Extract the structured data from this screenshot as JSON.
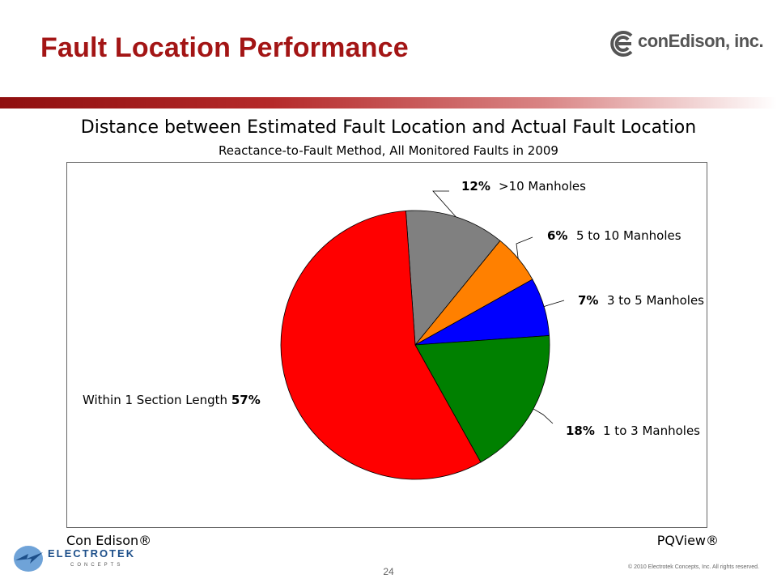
{
  "slide": {
    "title": "Fault Location Performance",
    "page_number": "24",
    "copyright": "© 2010 Electrotek Concepts, Inc. All rights reserved."
  },
  "logos": {
    "conedison": "conEdison, inc.",
    "electrotek_word": "ELECTROTEK",
    "electrotek_sub": "CONCEPTS"
  },
  "footer": {
    "left": "Con Edison®",
    "right": "PQView®"
  },
  "colors": {
    "title": "#a31515",
    "band_start": "#8f0f0f"
  },
  "chart_data": {
    "type": "pie",
    "title": "Distance between Estimated Fault Location and Actual Fault Location",
    "subtitle": "Reactance-to-Fault Method, All Monitored Faults in 2009",
    "start_angle_deg": -4,
    "direction": "clockwise",
    "slices": [
      {
        "label": ">10 Manholes",
        "percent": "12%",
        "value": 12,
        "color": "#808080"
      },
      {
        "label": "5 to 10 Manholes",
        "percent": "6%",
        "value": 6,
        "color": "#ff8000"
      },
      {
        "label": "3 to 5 Manholes",
        "percent": "7%",
        "value": 7,
        "color": "#0000ff"
      },
      {
        "label": "1 to 3 Manholes",
        "percent": "18%",
        "value": 18,
        "color": "#008000"
      },
      {
        "label": "Within 1 Section Length",
        "percent": "57%",
        "value": 57,
        "color": "#ff0000"
      }
    ]
  }
}
